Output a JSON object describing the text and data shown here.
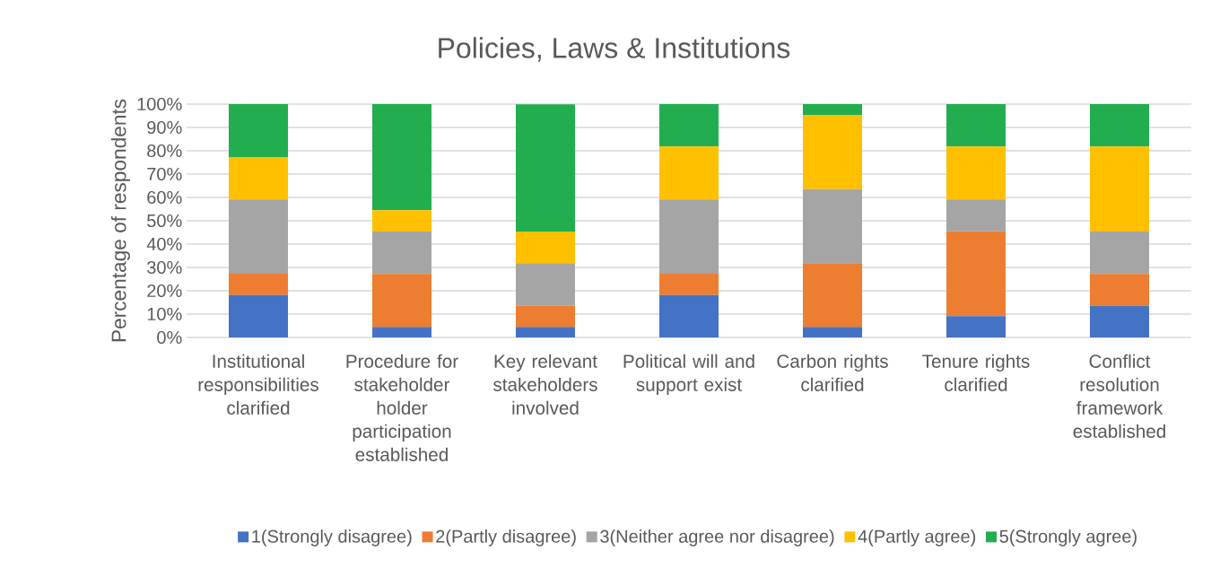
{
  "chart_data": {
    "type": "bar",
    "stacked": true,
    "title": "Policies, Laws & Institutions",
    "ylabel": "Percentage of respondents",
    "categories": [
      "Institutional responsibilities clarified",
      "Procedure for stakeholder holder participation established",
      "Key relevant stakeholders involved",
      "Political will and support exist",
      "Carbon rights clarified",
      "Tenure rights clarified",
      "Conflict resolution framework established"
    ],
    "series": [
      {
        "name": "1(Strongly disagree)",
        "color": "#4472c4",
        "values": [
          18.2,
          4.5,
          4.5,
          18.2,
          4.5,
          9.1,
          13.6
        ]
      },
      {
        "name": "2(Partly disagree)",
        "color": "#ed7d31",
        "values": [
          9.1,
          22.7,
          9.1,
          9.1,
          27.3,
          36.4,
          13.6
        ]
      },
      {
        "name": "3(Neither agree nor disagree)",
        "color": "#a5a5a5",
        "values": [
          31.8,
          18.2,
          18.2,
          31.8,
          31.8,
          13.6,
          18.2
        ]
      },
      {
        "name": "4(Partly agree)",
        "color": "#ffc000",
        "values": [
          18.2,
          9.1,
          13.6,
          22.7,
          31.8,
          22.7,
          36.4
        ]
      },
      {
        "name": "5(Strongly agree)",
        "color": "#22ae4f",
        "values": [
          22.7,
          45.5,
          54.5,
          18.2,
          4.6,
          18.2,
          18.2
        ]
      }
    ],
    "ylim": [
      0,
      100
    ],
    "yticks": [
      {
        "value": 0,
        "label": "0%"
      },
      {
        "value": 10,
        "label": "10%"
      },
      {
        "value": 20,
        "label": "20%"
      },
      {
        "value": 30,
        "label": "30%"
      },
      {
        "value": 40,
        "label": "40%"
      },
      {
        "value": 50,
        "label": "50%"
      },
      {
        "value": 60,
        "label": "60%"
      },
      {
        "value": 70,
        "label": "70%"
      },
      {
        "value": 80,
        "label": "80%"
      },
      {
        "value": 90,
        "label": "90%"
      },
      {
        "value": 100,
        "label": "100%"
      }
    ],
    "grid": "y",
    "legend": "bottom"
  }
}
